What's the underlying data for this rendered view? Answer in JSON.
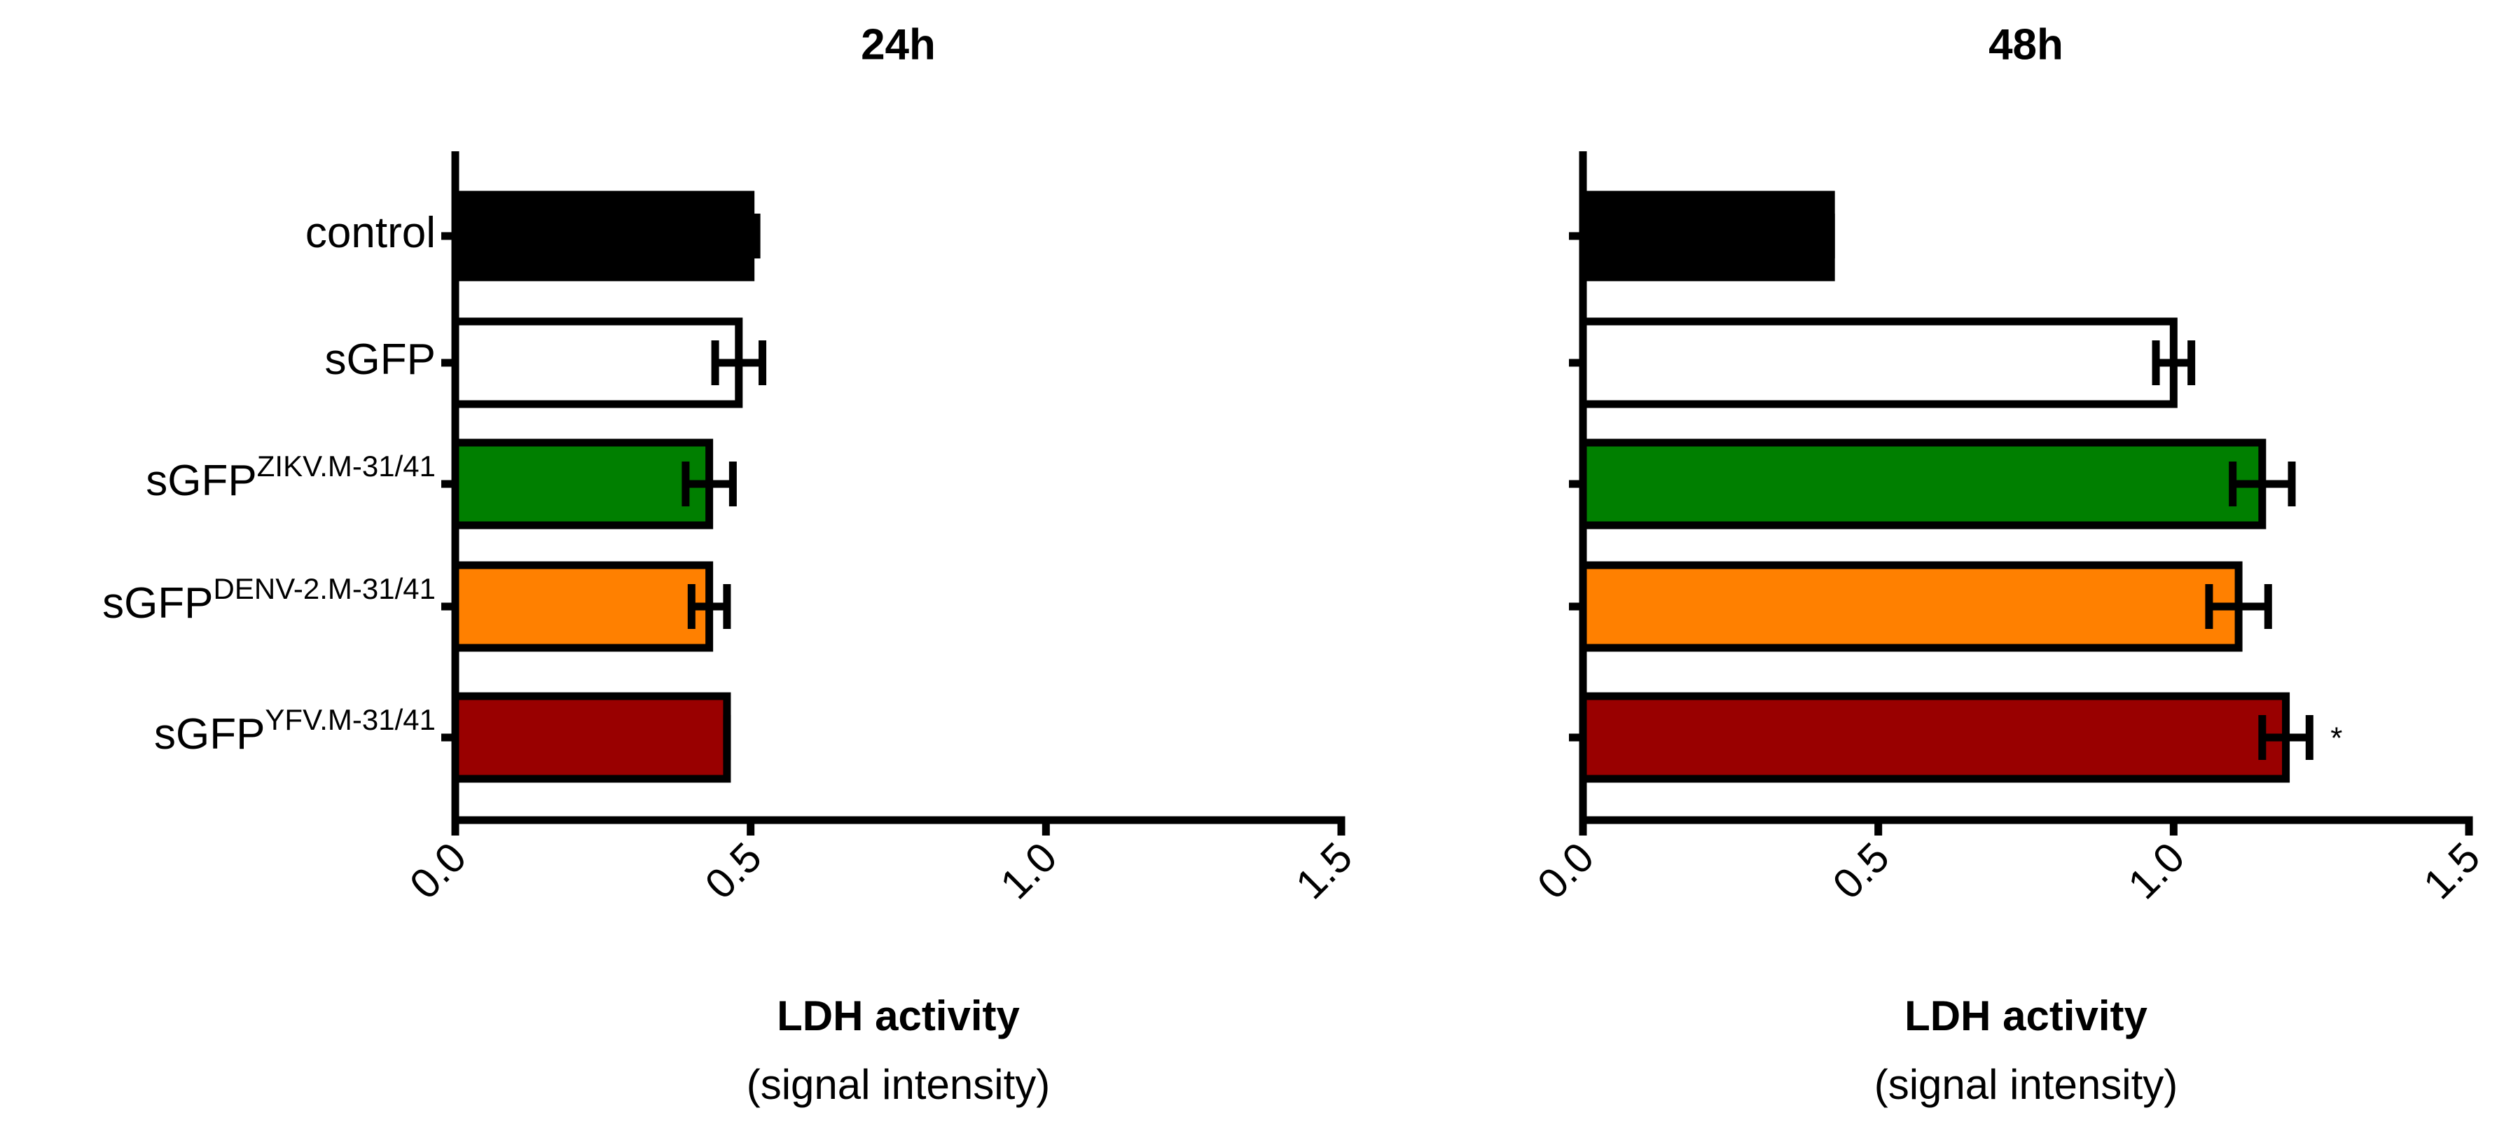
{
  "chart_data": [
    {
      "type": "hbar",
      "title": "24h",
      "xlabel": "LDH activity",
      "xlabel_sub": "(signal intensity)",
      "categories": [
        "control",
        "sGFP",
        "sGFP",
        "sGFP",
        "sGFP"
      ],
      "superscripts": [
        null,
        null,
        "ZIKV.M-31/41",
        "DENV-2.M-31/41",
        "YFV.M-31/41"
      ],
      "values": [
        0.5,
        0.48,
        0.43,
        0.43,
        0.46
      ],
      "errors": [
        0.01,
        0.04,
        0.04,
        0.03,
        0.0
      ],
      "colors": [
        "#000000",
        "#ffffff",
        "#007f00",
        "#ff8000",
        "#990000"
      ],
      "xlim": [
        0,
        1.5
      ],
      "xticks": [
        {
          "value": 0,
          "label": "0.0"
        },
        0.5,
        {
          "value": 1,
          "label": "1.0"
        },
        1.5
      ]
    },
    {
      "type": "hbar",
      "title": "48h",
      "xlabel": "LDH activity",
      "xlabel_sub": "(signal intensity)",
      "categories": [
        null,
        null,
        null,
        null,
        null
      ],
      "values": [
        0.42,
        1.0,
        1.15,
        1.11,
        1.19
      ],
      "errors": [
        0.0,
        0.03,
        0.05,
        0.05,
        0.04
      ],
      "colors": [
        "#000000",
        "#ffffff",
        "#007f00",
        "#ff8000",
        "#990000"
      ],
      "annotation": "*",
      "xlim": [
        0,
        1.5
      ],
      "xticks": [
        {
          "value": 0,
          "label": "0.0"
        },
        0.5,
        {
          "value": 1,
          "label": "1.0"
        },
        1.5
      ]
    }
  ]
}
